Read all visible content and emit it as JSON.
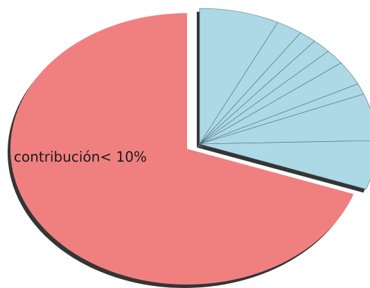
{
  "chart_data": {
    "type": "pie",
    "categories": [
      null,
      null,
      null,
      null,
      null,
      null,
      null,
      null,
      null,
      "contribución< 10%"
    ],
    "values": [
      7.3,
      2.4,
      1.6,
      1.7,
      1.8,
      2.9,
      1.3,
      5.6,
      5.8,
      69.6
    ],
    "colors": [
      "#add8e6",
      "#add8e6",
      "#add8e6",
      "#add8e6",
      "#add8e6",
      "#add8e6",
      "#add8e6",
      "#add8e6",
      "#add8e6",
      "#f08080"
    ]
  }
}
